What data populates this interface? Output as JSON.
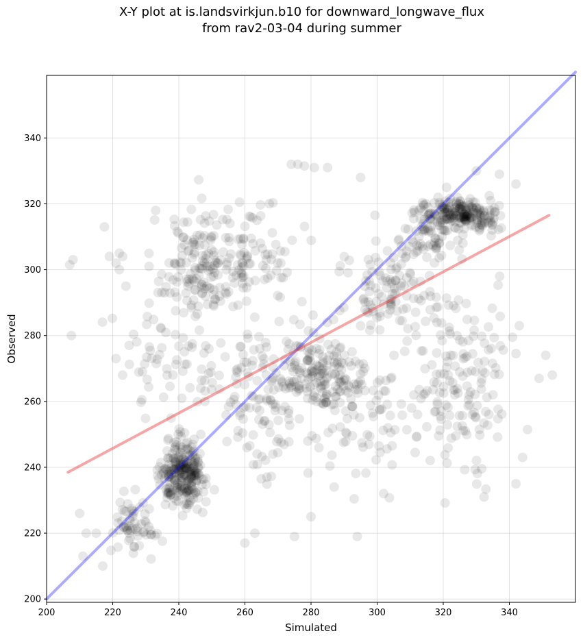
{
  "chart_data": {
    "type": "scatter",
    "title": "X-Y plot at is.landsvirkjun.b10 for downward_longwave_flux",
    "subtitle": "from rav2-03-04 during summer",
    "xlabel": "Simulated",
    "ylabel": "Observed",
    "xlim": [
      200,
      360
    ],
    "ylim": [
      199,
      359
    ],
    "xticks": [
      200,
      220,
      240,
      260,
      280,
      300,
      320,
      340
    ],
    "yticks": [
      200,
      220,
      240,
      260,
      280,
      300,
      320,
      340
    ],
    "grid": true,
    "colors": {
      "points": "#000000",
      "one_to_one": "#0000ff",
      "fit": "#e83a3a"
    },
    "one_to_one_line": {
      "x": [
        200,
        360
      ],
      "y": [
        200,
        360
      ]
    },
    "regression_line": {
      "x": [
        206.5,
        352
      ],
      "y": [
        238.5,
        316.5
      ]
    },
    "clusters": [
      {
        "center": [
          241,
          238
        ],
        "spread": [
          5,
          7
        ],
        "count": 260
      },
      {
        "center": [
          226,
          223
        ],
        "spread": [
          5,
          6
        ],
        "count": 60
      },
      {
        "center": [
          325,
          317
        ],
        "spread": [
          9,
          3
        ],
        "count": 220
      },
      {
        "center": [
          318,
          310
        ],
        "spread": [
          6,
          5
        ],
        "count": 60
      },
      {
        "center": [
          283,
          268
        ],
        "spread": [
          9,
          9
        ],
        "count": 150
      },
      {
        "center": [
          303,
          295
        ],
        "spread": [
          9,
          10
        ],
        "count": 100
      },
      {
        "center": [
          266,
          262
        ],
        "spread": [
          11,
          18
        ],
        "count": 130
      },
      {
        "center": [
          246,
          300
        ],
        "spread": [
          8,
          12
        ],
        "count": 140
      },
      {
        "center": [
          262,
          305
        ],
        "spread": [
          10,
          10
        ],
        "count": 90
      },
      {
        "center": [
          326,
          268
        ],
        "spread": [
          12,
          20
        ],
        "count": 160
      },
      {
        "center": [
          300,
          256
        ],
        "spread": [
          14,
          14
        ],
        "count": 90
      },
      {
        "center": [
          237,
          270
        ],
        "spread": [
          10,
          15
        ],
        "count": 60
      }
    ],
    "points": [
      [
        207,
        301.5
      ],
      [
        208,
        303
      ],
      [
        207.5,
        280
      ],
      [
        210,
        226
      ],
      [
        212,
        220
      ],
      [
        211,
        213
      ],
      [
        215,
        220
      ],
      [
        217,
        210
      ],
      [
        217.5,
        313
      ],
      [
        219,
        304
      ],
      [
        221,
        302
      ],
      [
        222,
        305
      ],
      [
        223,
        304
      ],
      [
        222,
        300
      ],
      [
        224,
        295
      ],
      [
        225,
        277
      ],
      [
        223,
        268
      ],
      [
        221,
        273
      ],
      [
        229,
        269
      ],
      [
        233,
        318
      ],
      [
        231,
        301
      ],
      [
        274,
        332
      ],
      [
        276,
        332
      ],
      [
        278,
        331.5
      ],
      [
        281,
        331
      ],
      [
        285,
        331
      ],
      [
        295,
        328
      ],
      [
        330,
        330
      ],
      [
        337,
        329
      ],
      [
        342,
        326
      ],
      [
        321,
        325
      ],
      [
        343,
        283
      ],
      [
        349,
        267
      ],
      [
        351,
        274
      ],
      [
        353,
        268
      ],
      [
        344,
        243
      ],
      [
        342,
        235
      ],
      [
        294,
        219
      ],
      [
        275,
        219
      ],
      [
        280,
        225
      ],
      [
        260,
        217
      ],
      [
        263,
        220
      ],
      [
        287,
        234
      ],
      [
        302,
        232
      ]
    ]
  }
}
